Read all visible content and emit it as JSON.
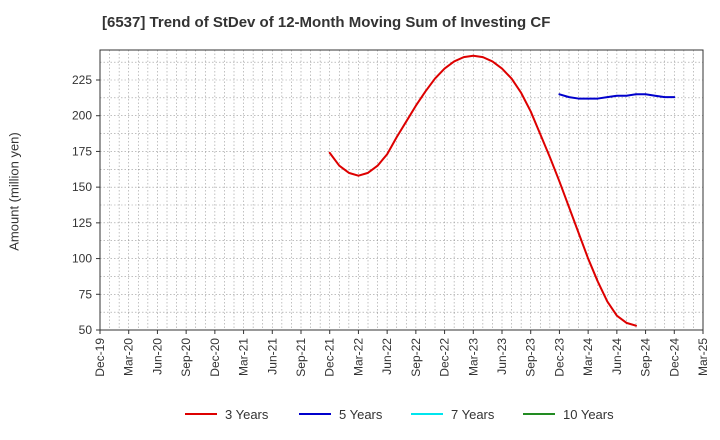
{
  "title": "[6537]  Trend of StDev of 12-Month Moving Sum of Investing CF",
  "colors": {
    "three_years": "#dd0000",
    "five_years": "#0000cc",
    "seven_years": "#00e5ee",
    "ten_years": "#228b22",
    "grid": "#999999",
    "axis": "#333333"
  },
  "chart_data": {
    "type": "line",
    "title": "[6537]  Trend of StDev of 12-Month Moving Sum of Investing CF",
    "xlabel": "",
    "ylabel": "Amount (million yen)",
    "x_ticks": [
      "Dec-19",
      "Mar-20",
      "Jun-20",
      "Sep-20",
      "Dec-20",
      "Mar-21",
      "Jun-21",
      "Sep-21",
      "Dec-21",
      "Mar-22",
      "Jun-22",
      "Sep-22",
      "Dec-22",
      "Mar-23",
      "Jun-23",
      "Sep-23",
      "Dec-23",
      "Mar-24",
      "Jun-24",
      "Sep-24",
      "Dec-24",
      "Mar-25"
    ],
    "x_range_months": [
      0,
      63
    ],
    "y_ticks": [
      50,
      75,
      100,
      125,
      150,
      175,
      200,
      225
    ],
    "ylim": [
      50,
      246
    ],
    "grid": true,
    "legend_position": "bottom",
    "series": [
      {
        "name": "3 Years",
        "color": "#dd0000",
        "x": [
          24,
          25,
          26,
          27,
          28,
          29,
          30,
          31,
          32,
          33,
          34,
          35,
          36,
          37,
          38,
          39,
          40,
          41,
          42,
          43,
          44,
          45,
          46,
          47,
          48,
          49,
          50,
          51,
          52,
          53,
          54,
          55,
          56,
          57,
          58,
          59,
          60
        ],
        "y": [
          174,
          165,
          160,
          158,
          160,
          165,
          173,
          185,
          196,
          207,
          217,
          226,
          233,
          238,
          241,
          242,
          241,
          238,
          233,
          226,
          216,
          203,
          187,
          171,
          154,
          136,
          118,
          100,
          84,
          70,
          60,
          55,
          53,
          null,
          null,
          null,
          null
        ]
      },
      {
        "name": "5 Years",
        "color": "#0000cc",
        "x": [
          48,
          49,
          50,
          51,
          52,
          53,
          54,
          55,
          56,
          57,
          58,
          59,
          60
        ],
        "y": [
          215,
          213,
          212,
          212,
          212,
          213,
          214,
          214,
          215,
          215,
          214,
          213,
          213
        ]
      },
      {
        "name": "7 Years",
        "color": "#00e5ee",
        "x": [],
        "y": []
      },
      {
        "name": "10 Years",
        "color": "#228b22",
        "x": [],
        "y": []
      }
    ]
  }
}
